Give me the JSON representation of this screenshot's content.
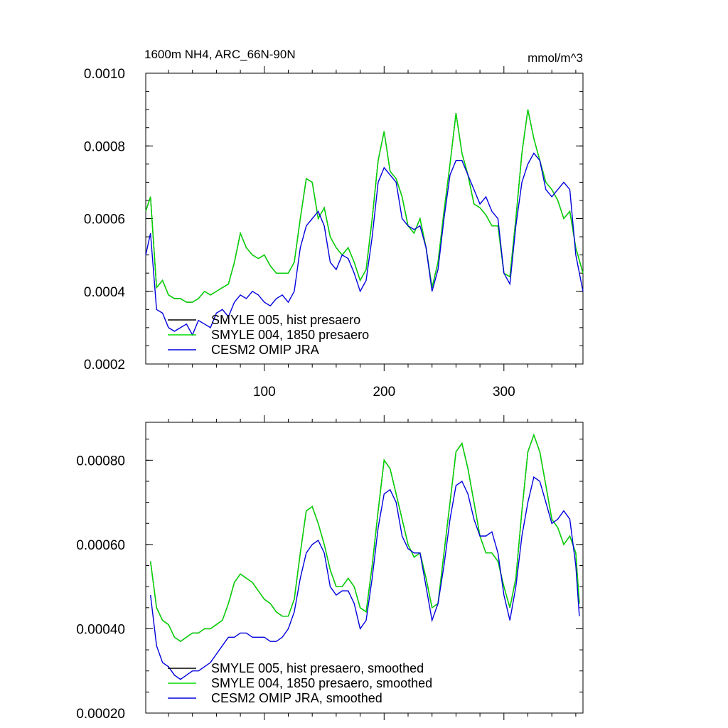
{
  "chart_data": [
    {
      "type": "line",
      "title": "1600m NH4, ARC_66N-90N",
      "units": "mmol/m^3",
      "xlim": [
        1,
        366
      ],
      "ylim": [
        0.0002,
        0.001
      ],
      "x_ticks": [
        100,
        200,
        300
      ],
      "x_tick_labels": [
        "100",
        "200",
        "300"
      ],
      "y_ticks": [
        0.0002,
        0.0004,
        0.0006,
        0.0008,
        0.001
      ],
      "y_tick_labels": [
        "0.0002",
        "0.0004",
        "0.0006",
        "0.0008",
        "0.0010"
      ],
      "legend_position": "bottom-left",
      "x": [
        1,
        5,
        10,
        15,
        20,
        25,
        30,
        35,
        40,
        45,
        50,
        55,
        60,
        65,
        70,
        75,
        80,
        85,
        90,
        95,
        100,
        105,
        110,
        115,
        120,
        125,
        130,
        135,
        140,
        145,
        150,
        155,
        160,
        165,
        170,
        175,
        180,
        185,
        190,
        195,
        200,
        205,
        210,
        215,
        220,
        225,
        230,
        235,
        240,
        245,
        250,
        255,
        260,
        265,
        270,
        275,
        280,
        285,
        290,
        295,
        300,
        305,
        310,
        315,
        320,
        325,
        330,
        335,
        340,
        345,
        350,
        355,
        360,
        366
      ],
      "series": [
        {
          "name": "SMYLE 005, hist presaero",
          "color": "#000000",
          "values": [
            0.00062,
            0.00066,
            0.00041,
            0.00043,
            0.00039,
            0.00038,
            0.00038,
            0.00037,
            0.00037,
            0.00038,
            0.0004,
            0.00039,
            0.0004,
            0.00041,
            0.00042,
            0.00048,
            0.00056,
            0.00052,
            0.0005,
            0.00049,
            0.0005,
            0.00047,
            0.00045,
            0.00045,
            0.00045,
            0.00048,
            0.0006,
            0.00071,
            0.0007,
            0.0006,
            0.00063,
            0.00055,
            0.00052,
            0.0005,
            0.00052,
            0.00048,
            0.00043,
            0.00046,
            0.0006,
            0.00076,
            0.00084,
            0.00073,
            0.00071,
            0.00066,
            0.00058,
            0.00056,
            0.0006,
            0.00052,
            0.00041,
            0.00048,
            0.00062,
            0.00075,
            0.00089,
            0.00078,
            0.00072,
            0.00064,
            0.00063,
            0.00061,
            0.00058,
            0.00058,
            0.00045,
            0.00044,
            0.0006,
            0.00078,
            0.0009,
            0.00082,
            0.00076,
            0.0007,
            0.00068,
            0.00065,
            0.0006,
            0.00062,
            0.00052,
            0.00045
          ]
        },
        {
          "name": "SMYLE 004, 1850 presaero",
          "color": "#00dd00",
          "values": [
            0.00062,
            0.00066,
            0.00041,
            0.00043,
            0.00039,
            0.00038,
            0.00038,
            0.00037,
            0.00037,
            0.00038,
            0.0004,
            0.00039,
            0.0004,
            0.00041,
            0.00042,
            0.00048,
            0.00056,
            0.00052,
            0.0005,
            0.00049,
            0.0005,
            0.00047,
            0.00045,
            0.00045,
            0.00045,
            0.00048,
            0.0006,
            0.00071,
            0.0007,
            0.0006,
            0.00063,
            0.00055,
            0.00052,
            0.0005,
            0.00052,
            0.00048,
            0.00043,
            0.00046,
            0.0006,
            0.00076,
            0.00084,
            0.00073,
            0.00071,
            0.00066,
            0.00058,
            0.00056,
            0.0006,
            0.00052,
            0.00041,
            0.00048,
            0.00062,
            0.00075,
            0.00089,
            0.00078,
            0.00072,
            0.00064,
            0.00063,
            0.00061,
            0.00058,
            0.00058,
            0.00045,
            0.00044,
            0.0006,
            0.00078,
            0.0009,
            0.00082,
            0.00076,
            0.0007,
            0.00068,
            0.00065,
            0.0006,
            0.00062,
            0.00052,
            0.00045
          ]
        },
        {
          "name": "CESM2 OMIP JRA",
          "color": "#0000dd",
          "values": [
            0.0005,
            0.00056,
            0.00035,
            0.00034,
            0.0003,
            0.00029,
            0.0003,
            0.00031,
            0.00028,
            0.00032,
            0.00031,
            0.0003,
            0.00034,
            0.00035,
            0.00033,
            0.00037,
            0.00039,
            0.00038,
            0.0004,
            0.00039,
            0.00037,
            0.00036,
            0.00038,
            0.00039,
            0.00037,
            0.0004,
            0.00052,
            0.00058,
            0.0006,
            0.00062,
            0.00058,
            0.00048,
            0.00046,
            0.0005,
            0.00049,
            0.00045,
            0.0004,
            0.00043,
            0.00055,
            0.0007,
            0.00074,
            0.00072,
            0.0007,
            0.0006,
            0.00058,
            0.00057,
            0.00058,
            0.00052,
            0.0004,
            0.00046,
            0.0006,
            0.00072,
            0.00076,
            0.00076,
            0.00072,
            0.00068,
            0.00064,
            0.00066,
            0.00062,
            0.0006,
            0.00045,
            0.00042,
            0.00058,
            0.0007,
            0.00075,
            0.00078,
            0.00076,
            0.00068,
            0.00066,
            0.00068,
            0.0007,
            0.00068,
            0.0005,
            0.0004
          ]
        }
      ]
    },
    {
      "type": "line",
      "title": "",
      "xlim": [
        1,
        366
      ],
      "ylim": [
        0.0002,
        0.00089
      ],
      "x_ticks": [
        100,
        200,
        300
      ],
      "y_ticks": [
        0.0002,
        0.0004,
        0.0006,
        0.0008
      ],
      "y_tick_labels": [
        "0.00020",
        "0.00040",
        "0.00060",
        "0.00080"
      ],
      "legend_position": "bottom-left",
      "x": [
        5,
        10,
        15,
        20,
        25,
        30,
        35,
        40,
        45,
        50,
        55,
        60,
        65,
        70,
        75,
        80,
        85,
        90,
        95,
        100,
        105,
        110,
        115,
        120,
        125,
        130,
        135,
        140,
        145,
        150,
        155,
        160,
        165,
        170,
        175,
        180,
        185,
        190,
        195,
        200,
        205,
        210,
        215,
        220,
        225,
        230,
        235,
        240,
        245,
        250,
        255,
        260,
        265,
        270,
        275,
        280,
        285,
        290,
        295,
        300,
        305,
        310,
        315,
        320,
        325,
        330,
        335,
        340,
        345,
        350,
        355,
        360,
        363
      ],
      "series": [
        {
          "name": "SMYLE 005, hist presaero, smoothed",
          "color": "#000000",
          "values": [
            0.00056,
            0.00045,
            0.00042,
            0.00041,
            0.00038,
            0.00037,
            0.00038,
            0.00039,
            0.00039,
            0.0004,
            0.0004,
            0.00041,
            0.00042,
            0.00046,
            0.00051,
            0.00053,
            0.00052,
            0.00051,
            0.00049,
            0.00047,
            0.00046,
            0.00044,
            0.00043,
            0.00043,
            0.00047,
            0.00058,
            0.00068,
            0.00069,
            0.00065,
            0.0006,
            0.00054,
            0.0005,
            0.0005,
            0.00052,
            0.0005,
            0.00045,
            0.00044,
            0.00055,
            0.00068,
            0.0008,
            0.00078,
            0.00072,
            0.00066,
            0.0006,
            0.00057,
            0.00058,
            0.00052,
            0.00045,
            0.00046,
            0.00058,
            0.0007,
            0.00082,
            0.00084,
            0.00078,
            0.0007,
            0.00062,
            0.00058,
            0.00058,
            0.00056,
            0.0005,
            0.00045,
            0.00052,
            0.00068,
            0.00082,
            0.00086,
            0.00082,
            0.00074,
            0.00066,
            0.00064,
            0.0006,
            0.00062,
            0.00058,
            0.00046
          ]
        },
        {
          "name": "SMYLE 004, 1850 presaero, smoothed",
          "color": "#00dd00",
          "values": [
            0.00056,
            0.00045,
            0.00042,
            0.00041,
            0.00038,
            0.00037,
            0.00038,
            0.00039,
            0.00039,
            0.0004,
            0.0004,
            0.00041,
            0.00042,
            0.00046,
            0.00051,
            0.00053,
            0.00052,
            0.00051,
            0.00049,
            0.00047,
            0.00046,
            0.00044,
            0.00043,
            0.00043,
            0.00047,
            0.00058,
            0.00068,
            0.00069,
            0.00065,
            0.0006,
            0.00054,
            0.0005,
            0.0005,
            0.00052,
            0.0005,
            0.00045,
            0.00044,
            0.00055,
            0.00068,
            0.0008,
            0.00078,
            0.00072,
            0.00066,
            0.0006,
            0.00057,
            0.00058,
            0.00052,
            0.00045,
            0.00046,
            0.00058,
            0.0007,
            0.00082,
            0.00084,
            0.00078,
            0.0007,
            0.00062,
            0.00058,
            0.00058,
            0.00056,
            0.0005,
            0.00045,
            0.00052,
            0.00068,
            0.00082,
            0.00086,
            0.00082,
            0.00074,
            0.00066,
            0.00064,
            0.0006,
            0.00062,
            0.00058,
            0.00046
          ]
        },
        {
          "name": "CESM2 OMIP JRA, smoothed",
          "color": "#0000dd",
          "values": [
            0.00048,
            0.00036,
            0.00032,
            0.00031,
            0.00029,
            0.00028,
            0.00029,
            0.0003,
            0.0003,
            0.00031,
            0.00032,
            0.00034,
            0.00036,
            0.00038,
            0.00038,
            0.00039,
            0.00039,
            0.00038,
            0.00038,
            0.00038,
            0.00037,
            0.00037,
            0.00038,
            0.0004,
            0.00044,
            0.00052,
            0.00058,
            0.0006,
            0.00061,
            0.00058,
            0.0005,
            0.00048,
            0.00049,
            0.00049,
            0.00046,
            0.0004,
            0.00042,
            0.00052,
            0.00064,
            0.00072,
            0.00073,
            0.0007,
            0.00062,
            0.00059,
            0.00058,
            0.00058,
            0.0005,
            0.00042,
            0.00046,
            0.00055,
            0.00066,
            0.00074,
            0.00075,
            0.00072,
            0.00066,
            0.00062,
            0.00062,
            0.00063,
            0.00058,
            0.00048,
            0.00042,
            0.0005,
            0.00062,
            0.0007,
            0.00076,
            0.00075,
            0.0007,
            0.00065,
            0.00066,
            0.00068,
            0.00066,
            0.00055,
            0.00043
          ]
        }
      ]
    }
  ]
}
